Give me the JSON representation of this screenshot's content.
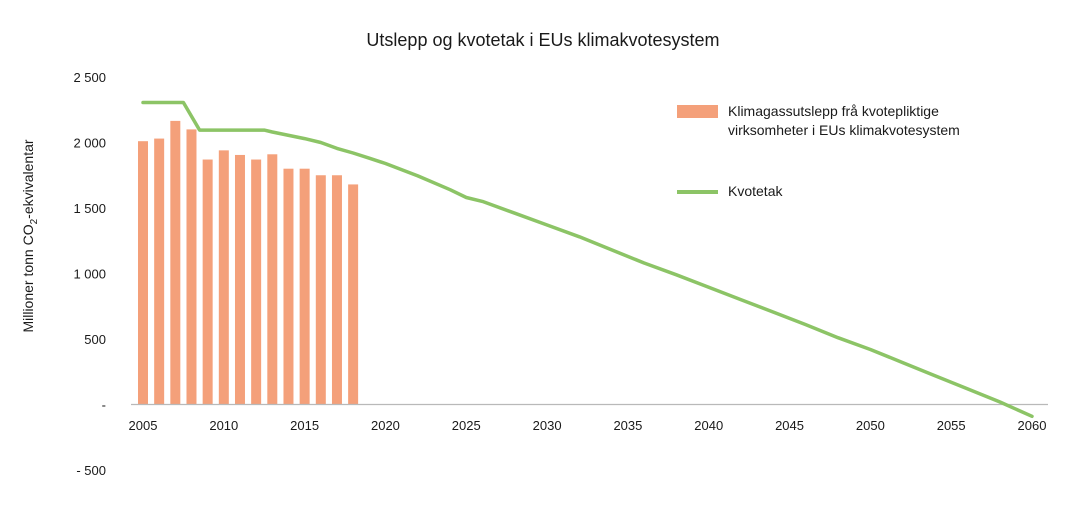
{
  "chart_data": {
    "type": "bar",
    "title": "Utslepp og kvotetak i EUs klimakvotesystem",
    "ylabel": {
      "prefix": "Millioner tonn CO",
      "sub": "2",
      "suffix": "-ekvivalentar"
    },
    "xlim": [
      2005,
      2060
    ],
    "ylim": [
      -500,
      2500
    ],
    "x_ticks": [
      2005,
      2010,
      2015,
      2020,
      2025,
      2030,
      2035,
      2040,
      2045,
      2050,
      2055,
      2060
    ],
    "y_ticks": [
      {
        "value": 2500,
        "label": "2 500"
      },
      {
        "value": 2000,
        "label": "2 000"
      },
      {
        "value": 1500,
        "label": "1 500"
      },
      {
        "value": 1000,
        "label": "1 000"
      },
      {
        "value": 500,
        "label": "500"
      },
      {
        "value": 0,
        "label": "-"
      },
      {
        "value": -500,
        "label": "- 500"
      }
    ],
    "series": [
      {
        "name": "Klimagassutslepp frå kvotepliktige virksomheter i EUs klimakvotesystem",
        "kind": "bar",
        "color": "#f4a07a",
        "x": [
          2005,
          2006,
          2007,
          2008,
          2009,
          2010,
          2011,
          2012,
          2013,
          2014,
          2015,
          2016,
          2017,
          2018
        ],
        "values": [
          2010,
          2030,
          2165,
          2100,
          1870,
          1940,
          1905,
          1870,
          1910,
          1800,
          1800,
          1750,
          1750,
          1680
        ]
      },
      {
        "name": "Kvotetak",
        "kind": "line",
        "color": "#8cc466",
        "x": [
          2005,
          2007.5,
          2008.5,
          2012.5,
          2013,
          2015,
          2016,
          2017,
          2018,
          2019,
          2020,
          2022,
          2024,
          2025,
          2026,
          2028,
          2030,
          2032,
          2034,
          2036,
          2038,
          2040,
          2042,
          2044,
          2046,
          2048,
          2050,
          2052,
          2054,
          2056,
          2058,
          2060
        ],
        "values": [
          2305,
          2305,
          2095,
          2095,
          2080,
          2030,
          2000,
          1955,
          1920,
          1880,
          1840,
          1745,
          1640,
          1580,
          1550,
          1460,
          1370,
          1280,
          1180,
          1080,
          990,
          895,
          800,
          705,
          610,
          510,
          420,
          320,
          220,
          120,
          20,
          -90
        ]
      }
    ],
    "legend": [
      {
        "series": 0,
        "lines": [
          "Klimagassutslepp frå kvotepliktige",
          "virksomheter i EUs klimakvotesystem"
        ]
      },
      {
        "series": 1,
        "lines": [
          "Kvotetak"
        ]
      }
    ]
  }
}
